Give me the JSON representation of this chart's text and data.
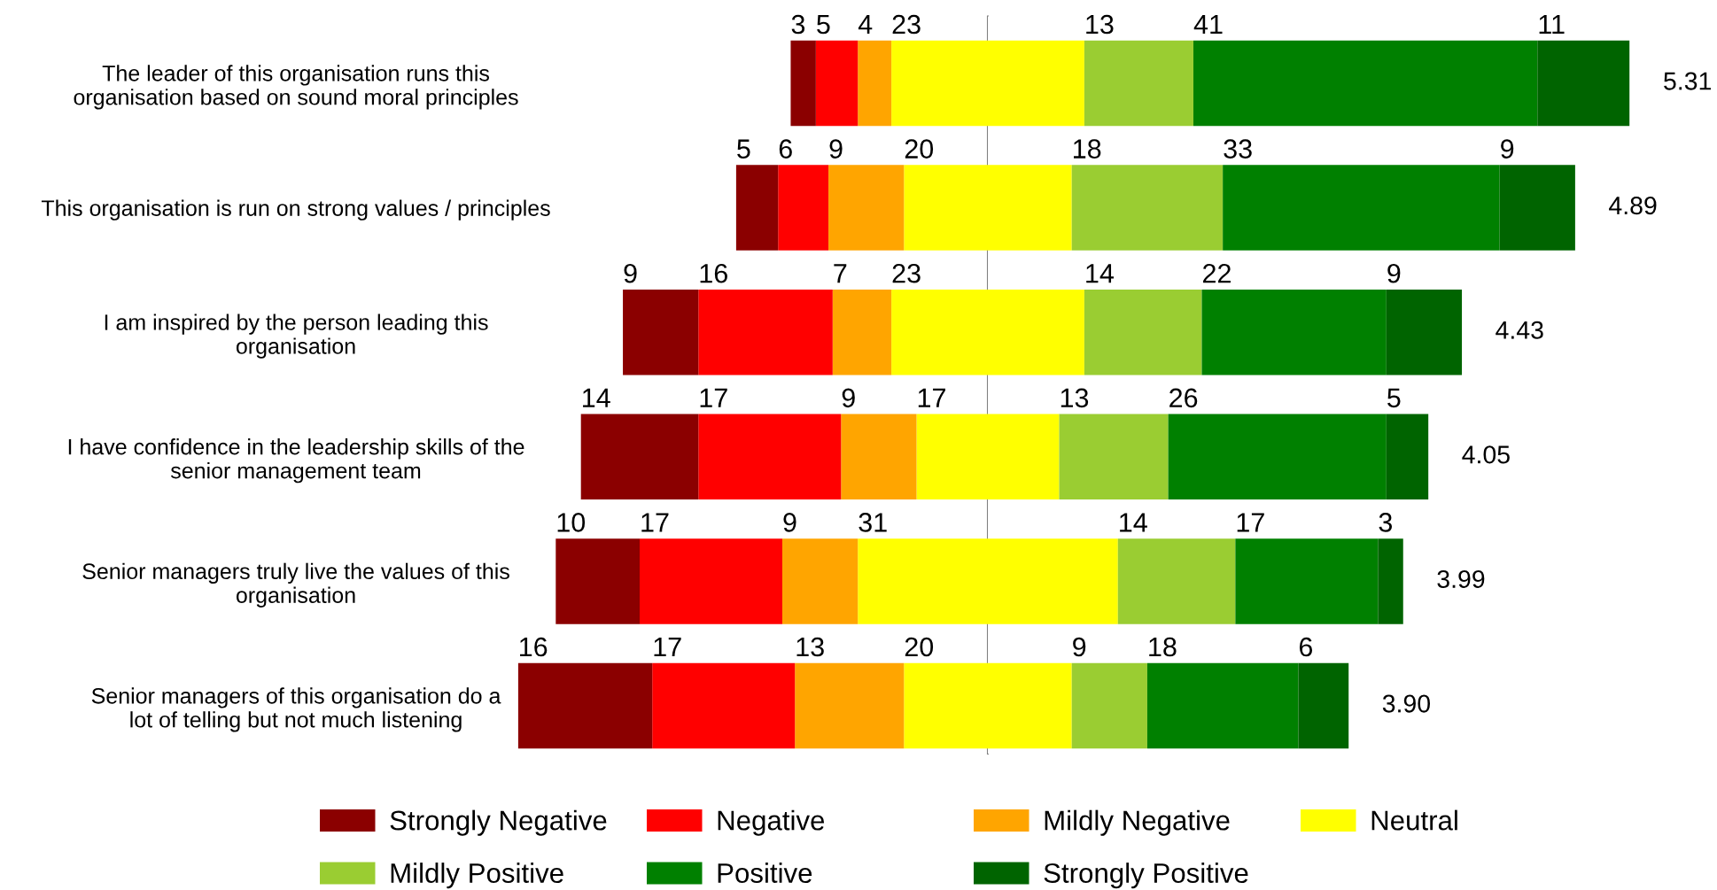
{
  "chart_data": [
    {
      "type": "bar",
      "orientation": "horizontal",
      "stacked": true,
      "categories": [
        "The leader of this organisation runs this\norganisation based on sound moral principles",
        "This organisation is run on strong values / principles",
        "I am inspired by the person leading this\norganisation",
        "I have confidence in the leadership skills of the\nsenior management team",
        "Senior managers truly live the values of this\norganisation",
        "Senior managers of this organisation do a\nlot of telling but not much listening"
      ],
      "xlim": [
        56,
        0
      ],
      "series": [
        {
          "name": "Neutral",
          "color": "#ffff00",
          "values": [
            11.5,
            10,
            11.5,
            8.5,
            15.5,
            10
          ],
          "value_labels": [
            null,
            null,
            null,
            null,
            null,
            null
          ]
        },
        {
          "name": "Mildly Negative",
          "color": "#ffa500",
          "values": [
            4,
            9,
            7,
            9,
            9,
            13
          ]
        },
        {
          "name": "Negative",
          "color": "#ff0000",
          "values": [
            5,
            6,
            16,
            17,
            17,
            17
          ]
        },
        {
          "name": "Strongly Negative",
          "color": "#8b0000",
          "values": [
            3,
            5,
            9,
            14,
            10,
            16
          ]
        }
      ],
      "data_labels": true,
      "legend": "bottom",
      "tick_labels": "y",
      "annotations": [
        {
          "text": "23",
          "x": 11.5,
          "y": "The leader of this organisation runs this\norganisation based on sound moral principles"
        },
        {
          "text": "20",
          "x": 10,
          "y": "This organisation is run on strong values / principles"
        },
        {
          "text": "23",
          "x": 11.5,
          "y": "I am inspired by the person leading this\norganisation"
        },
        {
          "text": "17",
          "x": 8.5,
          "y": "I have confidence in the leadership skills of the\nsenior management team"
        },
        {
          "text": "31",
          "x": 15.5,
          "y": "Senior managers truly live the values of this\norganisation"
        },
        {
          "text": "20",
          "x": 10,
          "y": "Senior managers of this organisation do a\nlot of telling but not much listening"
        }
      ]
    },
    {
      "type": "bar",
      "orientation": "horizontal",
      "stacked": true,
      "categories": [
        null,
        null,
        null,
        null,
        null,
        null
      ],
      "xlim": [
        0,
        76.5
      ],
      "series": [
        {
          "color": "#ffff00",
          "values": [
            11.5,
            10,
            11.5,
            8.5,
            15.5,
            10
          ],
          "value_labels": [
            null,
            null,
            null,
            null,
            null,
            null
          ]
        },
        {
          "name": "Mildly Positive",
          "color": "#9acd32",
          "values": [
            13,
            18,
            14,
            13,
            14,
            9
          ]
        },
        {
          "name": "Positive",
          "color": "#008000",
          "values": [
            41,
            33,
            22,
            26,
            17,
            18
          ]
        },
        {
          "name": "Strongly Positive",
          "color": "#006400",
          "values": [
            11,
            9,
            9,
            5,
            3,
            6
          ]
        }
      ],
      "data_labels": true,
      "legend": "bottom",
      "tick_labels": false,
      "annotations": [
        "5.31",
        "4.89",
        "4.43",
        "4.05",
        "3.99",
        "3.90"
      ]
    }
  ]
}
